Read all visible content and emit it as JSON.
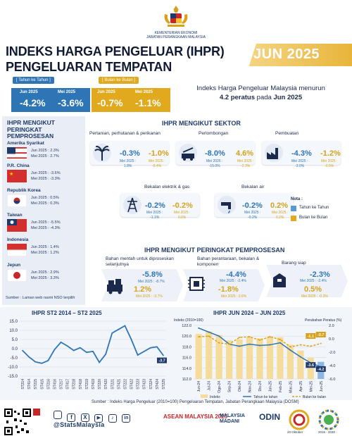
{
  "header": {
    "ministry_line1": "KEMENTERIAN EKONOMI",
    "ministry_line2": "JABATAN PERANGKAAN MALAYSIA",
    "title_line1": "INDEKS HARGA PENGELUAR (IHPR)",
    "title_line2": "PENGELUARAN TEMPATAN",
    "period": "JUN 2025"
  },
  "headline": {
    "yoy_tag": "[ Tahun ke Tahun ]",
    "mom_tag": "[ Bulan ke Bulan ]",
    "yoy": {
      "cur_label": "Jun 2025",
      "cur_value": "-4.2%",
      "prev_label": "Mei 2025",
      "prev_value": "-3.6%"
    },
    "mom": {
      "cur_label": "Jun 2025",
      "cur_value": "-0.7%",
      "prev_label": "Mei 2025",
      "prev_value": "-1.1%"
    },
    "summary_line1": "Indeks Harga Pengeluar Malaysia menurun",
    "summary_line2_pre": "4.2 peratus",
    "summary_line2_mid": " pada ",
    "summary_line2_post": "Jun 2025"
  },
  "colors": {
    "navy": "#1f3a68",
    "blue": "#2e75b6",
    "gold": "#e0a91e"
  },
  "countries": {
    "title": "IHPR MENGIKUT PERINGKAT PEMPROSESAN",
    "items": [
      {
        "name": "Amerika Syarikat",
        "jun": "Jun 2025 : 2.3%",
        "mei": "Mei 2025 : 2.7%",
        "flag": "usa-flag-icon"
      },
      {
        "name": "P.R. China",
        "jun": "Jun 2025 : -3.6%",
        "mei": "Mei 2025 : -3.3%",
        "flag": "china-flag-icon"
      },
      {
        "name": "Republik Korea",
        "jun": "Jun 2025 : 0.5%",
        "mei": "Mei 2025 : 0.3%",
        "flag": "korea-flag-icon"
      },
      {
        "name": "Taiwan",
        "jun": "Jun 2025 : -5.5%",
        "mei": "Mei 2025 : -4.3%",
        "flag": "taiwan-flag-icon"
      },
      {
        "name": "Indonesia",
        "jun": "Jun 2025 : 1.4%",
        "mei": "Mei 2025 : 1.2%",
        "flag": "indonesia-flag-icon"
      },
      {
        "name": "Jepun",
        "jun": "Jun 2025 : 2.9%",
        "mei": "Mei 2025 : 3.3%",
        "flag": "japan-flag-icon"
      }
    ],
    "source": "Sumber : Laman web rasmi NSO terpilih"
  },
  "sector": {
    "title": "IHPR MENGIKUT SEKTOR",
    "items": [
      {
        "label": "Pertanian, perhutanan & perikanan",
        "yoy": "-0.3%",
        "mom": "-1.0%",
        "yoy_prev": "Mei 2025 :\n1.8%",
        "mom_prev": "Mei 2025 :\n-5.4%",
        "icon": "palm-tree-icon"
      },
      {
        "label": "Perlombongan",
        "yoy": "-8.0%",
        "mom": "4.6%",
        "yoy_prev": "Mei 2025 :\n-15.0%",
        "mom_prev": "Mei 2025 :\n-2.3%",
        "icon": "mining-icon"
      },
      {
        "label": "Pembuatan",
        "yoy": "-4.3%",
        "mom": "-1.2%",
        "yoy_prev": "Mei 2025 :\n-3.0%",
        "mom_prev": "Mei 2025 :\n-0.5%",
        "icon": "factory-icon"
      },
      {
        "label": "Bekalan elektrik & gas",
        "yoy": "-0.2%",
        "mom": "-0.2%",
        "yoy_prev": "Mei 2025 :\n-1.1%",
        "mom_prev": "Mei 2025 :\n0.6%",
        "icon": "power-tower-icon"
      },
      {
        "label": "Bekalan air",
        "yoy": "-0.2%",
        "mom": "0.2%",
        "yoy_prev": "Mei 2025 :\n-0.2%",
        "mom_prev": "Mei 2025 :\n0.2%",
        "icon": "water-tap-icon"
      }
    ],
    "nota_title": "Nota :",
    "nota_yoy": "Tahun ke Tahun",
    "nota_mom": "Bulan ke Bulan"
  },
  "processing": {
    "title": "IHPR MENGIKUT PERINGKAT PEMPROSESAN",
    "items": [
      {
        "label": "Bahan mentah untuk diproseskan selanjutnya",
        "yoy": "-5.8%",
        "yoy_prev": "Mei 2025 : -8.7%",
        "mom": "1.2%",
        "mom_prev": "Mei 2025 : -3.7%",
        "icon": "raw-materials-icon"
      },
      {
        "label": "Bahan perantaraan, bekalan & komponen",
        "yoy": "-4.4%",
        "yoy_prev": "Mei 2025 : -2.4%",
        "mom": "-1.8%",
        "mom_prev": "Mei 2025 : 0.6%",
        "icon": "components-icon"
      },
      {
        "label": "Barang siap",
        "yoy": "-2.3%",
        "yoy_prev": "Mei 2025 : -2.4%",
        "mom": "0.5%",
        "mom_prev": "Mei 2025 : -0.3%",
        "icon": "finished-goods-icon"
      }
    ]
  },
  "chart_data": [
    {
      "type": "line",
      "title": "IHPR ST2 2014 – ST2 2025",
      "categories": [
        "ST2 14",
        "ST4 14",
        "ST2 15",
        "ST4 15",
        "ST2 16",
        "ST4 16",
        "ST2 17",
        "ST4 17",
        "ST2 18",
        "ST4 18",
        "ST2 19",
        "ST4 19",
        "ST2 20",
        "ST4 20",
        "ST2 21",
        "ST4 21",
        "ST2 22",
        "ST4 22",
        "ST2 23",
        "ST4 23",
        "ST2 24",
        "ST4 24",
        "ST2 25"
      ],
      "category_labels": [
        "ST214",
        "ST414",
        "ST215",
        "ST415",
        "ST216",
        "ST416",
        "ST217",
        "ST417",
        "ST218",
        "ST418",
        "ST219",
        "ST419",
        "ST220",
        "ST420",
        "ST221",
        "ST421",
        "ST222",
        "ST422",
        "ST223",
        "ST423",
        "ST224",
        "ST424",
        "ST225"
      ],
      "values": [
        -1.0,
        -4.5,
        -7.2,
        -8.0,
        -6.5,
        -0.5,
        3.5,
        1.5,
        -1.0,
        0.5,
        -2.0,
        -1.5,
        -7.5,
        -3.0,
        8.5,
        10.5,
        12.5,
        5.0,
        -3.5,
        -1.5,
        0.5,
        1.0,
        -3.7
      ],
      "last_label": "-3.7",
      "ylim": [
        -15,
        15
      ],
      "yticks": [
        "15.0",
        "10.0",
        "5.0",
        "0.0",
        "-5.0",
        "-10.0",
        "-15.0"
      ]
    },
    {
      "type": "bar",
      "title": "IHPR JUN 2024 – JUN 2025",
      "ylabel": "Indeks (2010=100)",
      "y2label": "Perubahan Peratus (%)",
      "categories": [
        "Jun-24",
        "Jul-24",
        "Ogo-24",
        "Sep-24",
        "Okt-24",
        "Nov-24",
        "Dis-24",
        "Jan-25",
        "Feb-25",
        "Mac-25",
        "Apr-25",
        "Mei-25",
        "Jun-25"
      ],
      "series": [
        {
          "name": "Indeks",
          "values": [
            120.4,
            120.9,
            120.2,
            119.2,
            119.4,
            119.8,
            119.6,
            119.9,
            119.8,
            118.4,
            117.3,
            116.0,
            115.2
          ]
        },
        {
          "name": "Tahun ke tahun",
          "values": [
            1.6,
            1.0,
            0.4,
            -0.8,
            -1.1,
            -0.8,
            -1.0,
            -0.9,
            -0.6,
            -1.7,
            -2.7,
            -3.6,
            -4.2
          ]
        },
        {
          "name": "Bulan ke bulan",
          "values": [
            0.3,
            0.4,
            -0.6,
            -0.8,
            0.2,
            0.3,
            -0.2,
            0.3,
            -0.1,
            -1.2,
            -0.9,
            -1.1,
            -0.7
          ]
        }
      ],
      "ylim": [
        112.0,
        122.0
      ],
      "yticks": [
        "122.0",
        "120.0",
        "118.0",
        "116.0",
        "114.0",
        "112.0"
      ],
      "y2lim": [
        -6,
        2
      ],
      "y2ticks": [
        "2.0",
        "0.0",
        "-2.0",
        "-4.0",
        "-6.0"
      ],
      "point_labels": {
        "mom_last": "-0.7",
        "mom_prev": "-1.1",
        "yoy_prev": "-3.6",
        "yoy_last": "-4.2"
      }
    }
  ],
  "footer": {
    "source": "Sumber : Indeks Harga Pengeluar (2010=100) Pengeluaran Tempatan, Jabatan Perangkaan Malaysia (DOSM)",
    "handle": "@StatsMalaysia",
    "logos": [
      "ASEAN MALAYSIA 2025",
      "MALAYSIA MADANI",
      "ODIN",
      "20 Oktober",
      "2016 - 2030"
    ]
  }
}
